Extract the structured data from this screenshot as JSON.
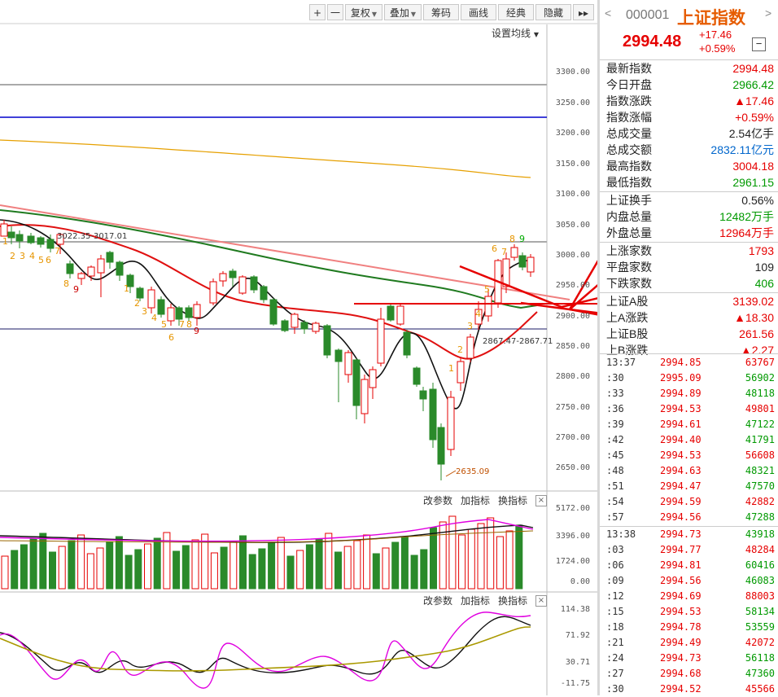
{
  "toolbar": {
    "plus": "+",
    "minus": "一",
    "fuquan": "复权",
    "diejia": "叠加",
    "chouma": "筹码",
    "huaxian": "画线",
    "jingdian": "经典",
    "yincang": "隐藏",
    "expand": "▸▸",
    "ma_setting": "设置均线"
  },
  "y_axis_main": [
    "3300.00",
    "3250.00",
    "3200.00",
    "3150.00",
    "3100.00",
    "3050.00",
    "3000.00",
    "2950.00",
    "2900.00",
    "2850.00",
    "2800.00",
    "2750.00",
    "2700.00",
    "2650.00"
  ],
  "y_axis_volume": [
    "5172.00",
    "3396.00",
    "1724.00",
    "0.00"
  ],
  "y_axis_indicator": [
    "114.38",
    "71.92",
    "30.71",
    "-11.75"
  ],
  "annotations": {
    "range_top": "3022.35-3017.01",
    "range_mid": "2867.47-2867.71",
    "low_price": "2635.09",
    "td_left": [
      "1",
      "2",
      "3",
      "4",
      "5",
      "6",
      "7",
      "8",
      "9"
    ],
    "td_mid": [
      "1",
      "2",
      "3",
      "4",
      "5",
      "6",
      "7",
      "8",
      "9"
    ],
    "td_right": [
      "1",
      "2",
      "3",
      "4",
      "5",
      "6",
      "7",
      "8",
      "9"
    ]
  },
  "subchart_menu": {
    "change_params": "改参数",
    "add_indicator": "加指标",
    "switch_indicator": "换指标",
    "close": "×"
  },
  "header": {
    "back": "<",
    "forward": ">",
    "code": "000001",
    "name": "上证指数",
    "price": "2994.48",
    "change": "+17.46",
    "change_pct": "+0.59%",
    "collapse": "−"
  },
  "stats": [
    {
      "label": "最新指数",
      "value": "2994.48",
      "color": "red"
    },
    {
      "label": "今日开盘",
      "value": "2966.42",
      "color": "green"
    },
    {
      "label": "指数涨跌",
      "value": "▲17.46",
      "color": "red"
    },
    {
      "label": "指数涨幅",
      "value": "+0.59%",
      "color": "red"
    },
    {
      "label": "总成交量",
      "value": "2.54亿手",
      "color": "dark"
    },
    {
      "label": "总成交额",
      "value": "2832.11亿元",
      "color": "blue"
    },
    {
      "label": "最高指数",
      "value": "3004.18",
      "color": "red"
    },
    {
      "label": "最低指数",
      "value": "2961.15",
      "color": "green"
    },
    {
      "label": "上证换手",
      "value": "0.56%",
      "color": "dark"
    },
    {
      "label": "内盘总量",
      "value": "12482万手",
      "color": "green"
    },
    {
      "label": "外盘总量",
      "value": "12964万手",
      "color": "red"
    },
    {
      "label": "上涨家数",
      "value": "1793",
      "color": "red"
    },
    {
      "label": "平盘家数",
      "value": "109",
      "color": "dark"
    },
    {
      "label": "下跌家数",
      "value": "406",
      "color": "green"
    },
    {
      "label": "上证A股",
      "value": "3139.02",
      "color": "red"
    },
    {
      "label": "上A涨跌",
      "value": "▲18.30",
      "color": "red"
    },
    {
      "label": "上证B股",
      "value": "261.56",
      "color": "red"
    },
    {
      "label": "上B涨跌",
      "value": "▲2.27",
      "color": "red"
    }
  ],
  "ticks": [
    {
      "t": "13:37",
      "p": "2994.85",
      "v": "63767"
    },
    {
      "t": ":30",
      "p": "2995.09",
      "v": "56902"
    },
    {
      "t": ":33",
      "p": "2994.89",
      "v": "48118"
    },
    {
      "t": ":36",
      "p": "2994.53",
      "v": "49801"
    },
    {
      "t": ":39",
      "p": "2994.61",
      "v": "47122"
    },
    {
      "t": ":42",
      "p": "2994.40",
      "v": "41791"
    },
    {
      "t": ":45",
      "p": "2994.53",
      "v": "56608"
    },
    {
      "t": ":48",
      "p": "2994.63",
      "v": "48321"
    },
    {
      "t": ":51",
      "p": "2994.47",
      "v": "47570"
    },
    {
      "t": ":54",
      "p": "2994.59",
      "v": "42882"
    },
    {
      "t": ":57",
      "p": "2994.56",
      "v": "47288"
    },
    {
      "t": "13:38",
      "p": "2994.73",
      "v": "43918"
    },
    {
      "t": ":03",
      "p": "2994.77",
      "v": "48284"
    },
    {
      "t": ":06",
      "p": "2994.81",
      "v": "60416"
    },
    {
      "t": ":09",
      "p": "2994.56",
      "v": "46083"
    },
    {
      "t": ":12",
      "p": "2994.69",
      "v": "88003"
    },
    {
      "t": ":15",
      "p": "2994.53",
      "v": "58134"
    },
    {
      "t": ":18",
      "p": "2994.78",
      "v": "53559"
    },
    {
      "t": ":21",
      "p": "2994.49",
      "v": "42072"
    },
    {
      "t": ":24",
      "p": "2994.73",
      "v": "56118"
    },
    {
      "t": ":27",
      "p": "2994.68",
      "v": "47360"
    },
    {
      "t": ":30",
      "p": "2994.52",
      "v": "45566"
    }
  ],
  "colors": {
    "up": "#e60000",
    "down": "#2a8a2a",
    "accent": "#e60000"
  }
}
